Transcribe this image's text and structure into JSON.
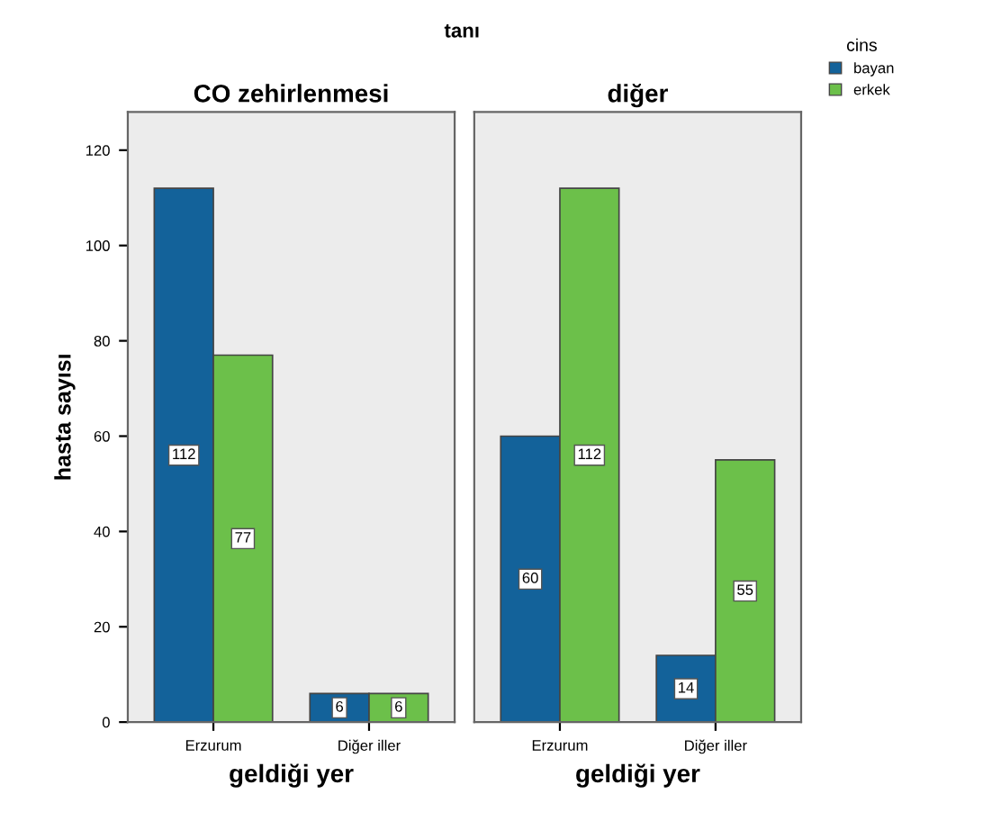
{
  "chart_data": [
    {
      "type": "bar",
      "title": "CO zehirlenmesi",
      "annotations": [
        "tanı"
      ],
      "xlabel": "geldiği yer",
      "ylabel": "hasta sayısı",
      "categories": [
        "Erzurum",
        "Diğer iller"
      ],
      "series": [
        {
          "name": "bayan",
          "color": "#13629a",
          "values": [
            112,
            6
          ]
        },
        {
          "name": "erkek",
          "color": "#6cc04a",
          "values": [
            77,
            6
          ]
        }
      ],
      "ylim": [
        0,
        128
      ],
      "yticks": [
        0,
        20,
        40,
        60,
        80,
        100,
        120
      ],
      "data_labels": true,
      "grid": false,
      "legend": "right",
      "legend_title": "cins"
    },
    {
      "type": "bar",
      "title": "diğer",
      "xlabel": "geldiği yer",
      "categories": [
        "Erzurum",
        "Diğer iller"
      ],
      "series": [
        {
          "color": "#13629a",
          "values": [
            60,
            14
          ]
        },
        {
          "color": "#6cc04a",
          "values": [
            112,
            55
          ]
        }
      ],
      "ylim": [
        0,
        128
      ],
      "yticks": [
        0,
        20,
        40,
        60,
        80,
        100,
        120
      ],
      "tick_labels": "x",
      "data_labels": true,
      "grid": false
    }
  ]
}
